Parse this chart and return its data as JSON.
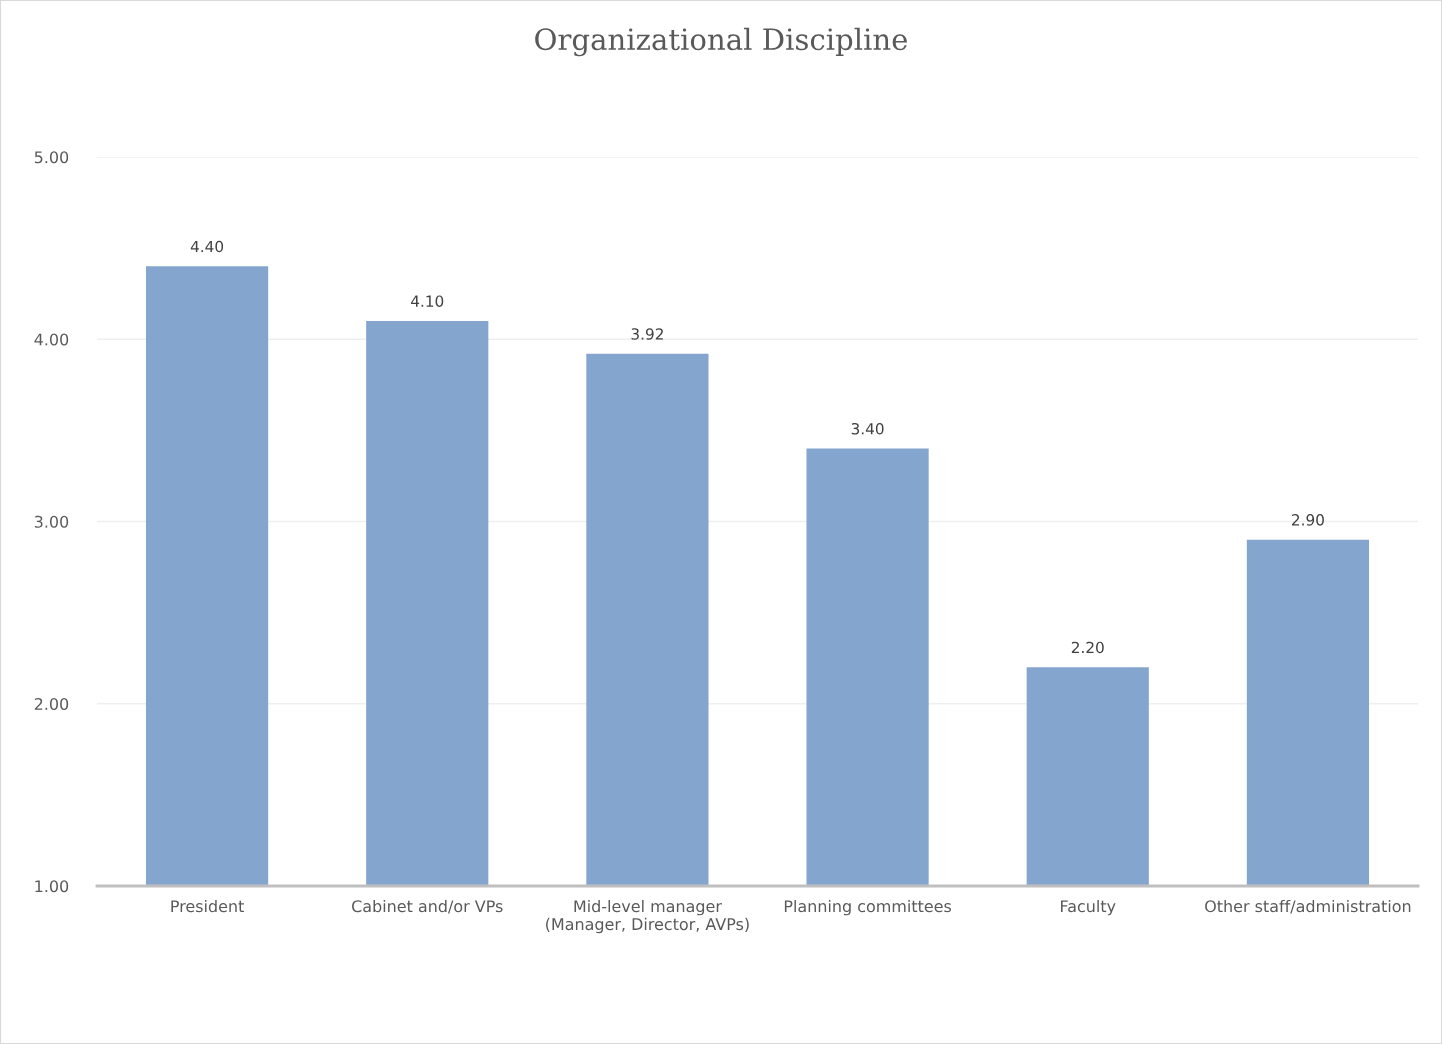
{
  "chart_data": {
    "type": "bar",
    "title": "Organizational Discipline",
    "categories": [
      "President",
      "Cabinet and/or VPs",
      "Mid-level manager\n(Manager, Director, AVPs)",
      "Planning committees",
      "Faculty",
      "Other staff/administration"
    ],
    "values": [
      4.4,
      4.1,
      3.92,
      3.4,
      2.2,
      2.9
    ],
    "color": "#84a6ce",
    "value_labels": [
      "4.40",
      "4.10",
      "3.92",
      "3.40",
      "2.20",
      "2.90"
    ],
    "ylim": [
      1,
      5
    ],
    "yticks": [
      {
        "value": 1,
        "label": "1.00"
      },
      {
        "value": 2,
        "label": "2.00"
      },
      {
        "value": 3,
        "label": "3.00"
      },
      {
        "value": 4,
        "label": "4.00"
      },
      {
        "value": 5,
        "label": "5.00"
      }
    ],
    "grid": "y"
  }
}
